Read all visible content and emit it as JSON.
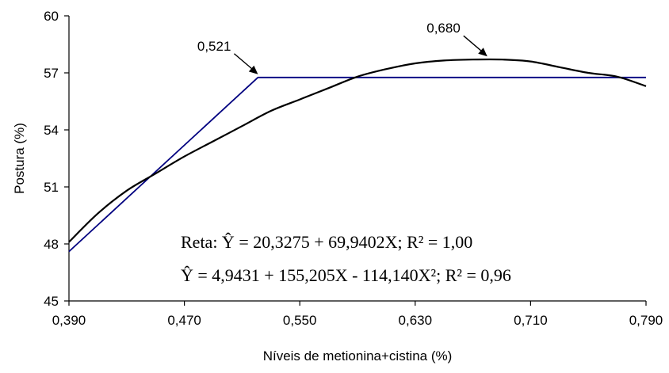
{
  "chart_data": {
    "type": "line",
    "title": "",
    "xlabel": "Níveis de metionina+cistina (%)",
    "ylabel": "Postura (%)",
    "xlim": [
      0.39,
      0.79
    ],
    "ylim": [
      45,
      60
    ],
    "x_ticks": [
      0.39,
      0.47,
      0.55,
      0.63,
      0.71,
      0.79
    ],
    "x_tick_labels": [
      "0,390",
      "0,470",
      "0,550",
      "0,630",
      "0,710",
      "0,790"
    ],
    "y_ticks": [
      45,
      48,
      51,
      54,
      57,
      60
    ],
    "y_tick_labels": [
      "45",
      "48",
      "51",
      "54",
      "57",
      "60"
    ],
    "grid": false,
    "series": [
      {
        "kind": "linear-plateau",
        "color": "#000080",
        "x": [
          0.39,
          0.521,
          0.79
        ],
        "y": [
          47.6,
          56.76,
          56.76
        ]
      },
      {
        "kind": "quadratic",
        "color": "#000000",
        "x": [
          0.39,
          0.41,
          0.43,
          0.45,
          0.47,
          0.49,
          0.51,
          0.53,
          0.55,
          0.57,
          0.59,
          0.61,
          0.63,
          0.65,
          0.67,
          0.69,
          0.71,
          0.73,
          0.75,
          0.77,
          0.79
        ],
        "y": [
          48.1,
          49.6,
          50.8,
          51.7,
          52.6,
          53.4,
          54.2,
          55.0,
          55.6,
          56.2,
          56.8,
          57.2,
          57.5,
          57.65,
          57.7,
          57.7,
          57.6,
          57.3,
          57.0,
          56.8,
          56.3
        ]
      }
    ],
    "annotations": [
      {
        "text": "0,521",
        "x": 0.521,
        "y": 56.76,
        "label_side": "upper-left"
      },
      {
        "text": "0,680",
        "x": 0.68,
        "y": 57.7,
        "label_side": "upper-left"
      }
    ],
    "equations": {
      "line1": "Reta:  Ŷ = 20,3275 + 69,9402X; R² = 1,00",
      "line2": "Ŷ = 4,9431 + 155,205X - 114,140X²; R² = 0,96"
    }
  }
}
